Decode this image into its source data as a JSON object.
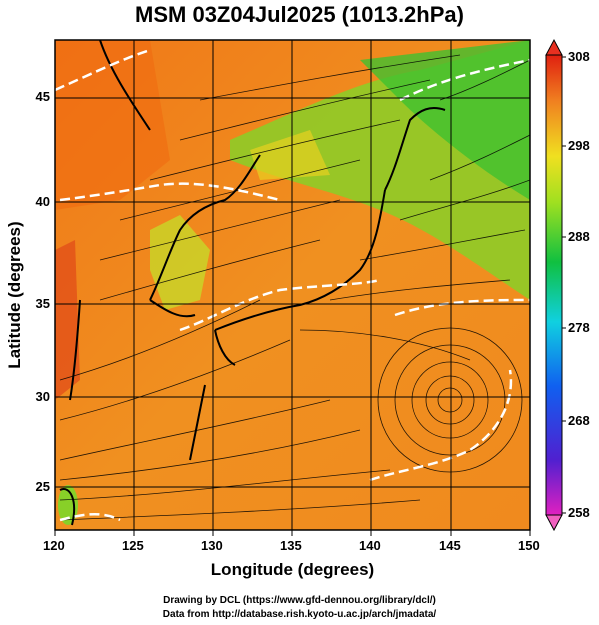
{
  "title": "MSM 03Z04Jul2025 (1013.2hPa)",
  "x_axis": {
    "label": "Longitude (degrees)",
    "ticks": [
      "120",
      "125",
      "130",
      "135",
      "140",
      "145",
      "150"
    ]
  },
  "y_axis": {
    "label": "Latitude  (degrees)",
    "ticks": [
      "45",
      "40",
      "35",
      "30",
      "25"
    ]
  },
  "colorbar": {
    "ticks": [
      "308",
      "298",
      "288",
      "278",
      "268",
      "258"
    ],
    "min": 258,
    "max": 308
  },
  "map_extent": {
    "lon": [
      120,
      150
    ],
    "lat": [
      22.4,
      47.6
    ]
  },
  "credits": {
    "line1": "Drawing by DCL (https://www.gfd-dennou.org/library/dcl/)",
    "line2": "Data from http://database.rish.kyoto-u.ac.jp/arch/jmadata/"
  },
  "colors": {
    "warm": "#f08a1e",
    "mid": "#e8d020",
    "green": "#50c830",
    "border": "#000000"
  }
}
